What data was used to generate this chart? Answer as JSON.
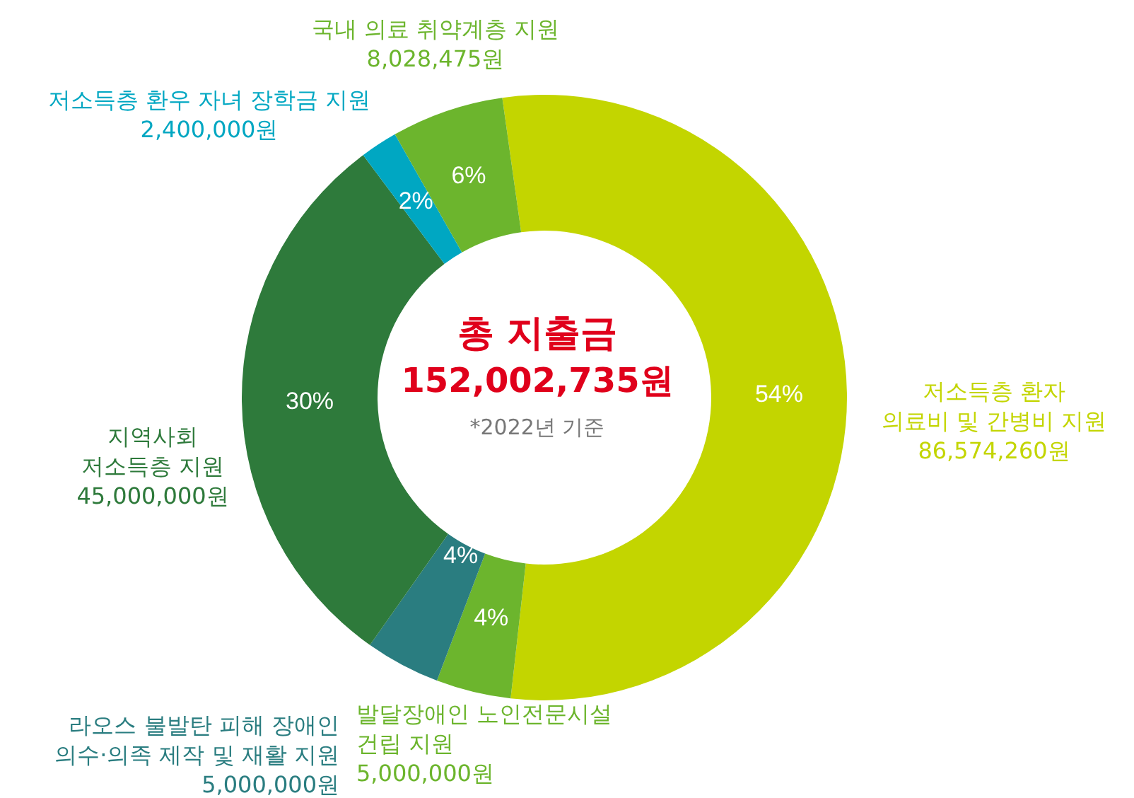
{
  "chart_data": {
    "type": "donut",
    "title": "총 지출금",
    "subtitle": "152,002,735원",
    "annotations": [
      "*2022년 기준",
      "86,574,260원",
      "5,000,000원",
      "5,000,000원",
      "45,000,000원",
      "2,400,000원",
      "8,028,475원"
    ],
    "categories": [
      "저소득층 환자 의료비 및 간병비 지원",
      "발달장애인 노인전문시설 건립 지원",
      "라오스 불발탄 피해 장애인 의수·의족 제작 및 재활 지원",
      "지역사회 저소득층 지원",
      "저소득층 환우 자녀 장학금 지원",
      "국내 의료 취약계층 지원"
    ],
    "values": [
      54,
      4,
      4,
      30,
      2,
      6
    ],
    "value_labels": [
      "54%",
      "4%",
      "4%",
      "30%",
      "2%",
      "6%"
    ],
    "colors": [
      "#c3d500",
      "#6cb52d",
      "#2a7d80",
      "#2e7a3b",
      "#00a7c2",
      "#6cb52d"
    ]
  }
}
